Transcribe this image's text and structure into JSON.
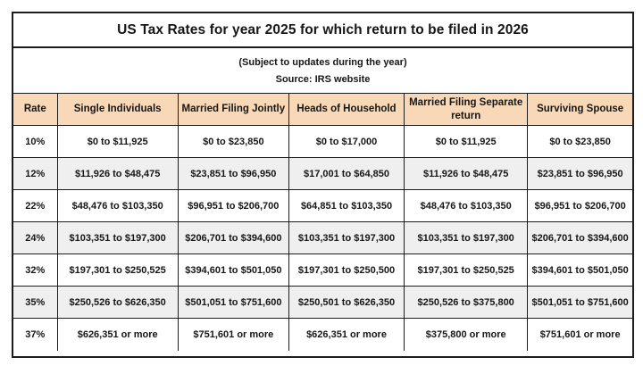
{
  "colors": {
    "page_bg": "#ffffff",
    "header_bg": "#f8d8b6",
    "alt_row_bg": "#efefef",
    "border_color": "#1c1c1c",
    "text_color": "#161616"
  },
  "chart_data": {
    "type": "table",
    "title": "US Tax Rates for year 2025 for which return to be filed in 2026",
    "subtitle": "(Subject to updates during the year)",
    "source": "Source: IRS website",
    "columns": [
      "Rate",
      "Single Individuals",
      "Married Filing Jointly",
      "Heads of Household",
      "Married Filing Separate return",
      "Surviving Spouse"
    ],
    "rows": [
      [
        "10%",
        "$0 to $11,925",
        "$0 to $23,850",
        "$0 to $17,000",
        "$0 to $11,925",
        "$0 to $23,850"
      ],
      [
        "12%",
        "$11,926 to $48,475",
        "$23,851 to $96,950",
        "$17,001 to $64,850",
        "$11,926 to $48,475",
        "$23,851 to $96,950"
      ],
      [
        "22%",
        "$48,476 to $103,350",
        "$96,951 to $206,700",
        "$64,851 to $103,350",
        "$48,476 to $103,350",
        "$96,951 to $206,700"
      ],
      [
        "24%",
        "$103,351 to $197,300",
        "$206,701 to $394,600",
        "$103,351 to $197,300",
        "$103,351 to $197,300",
        "$206,701 to $394,600"
      ],
      [
        "32%",
        "$197,301 to $250,525",
        "$394,601 to $501,050",
        "$197,301 to $250,500",
        "$197,301 to $250,525",
        "$394,601 to $501,050"
      ],
      [
        "35%",
        "$250,526 to $626,350",
        "$501,051 to $751,600",
        "$250,501 to $626,350",
        "$250,526 to $375,800",
        "$501,051 to $751,600"
      ],
      [
        "37%",
        "$626,351 or more",
        "$751,601 or more",
        "$626,351 or more",
        "$375,800 or more",
        "$751,601 or more"
      ]
    ],
    "layout_hints": {
      "header_fill": "peach",
      "alternating_row_shading": true,
      "all_text_bold": true,
      "grid": true
    }
  }
}
